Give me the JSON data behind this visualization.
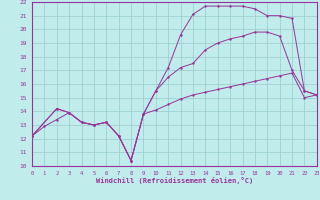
{
  "xlabel": "Windchill (Refroidissement éolien,°C)",
  "bg_color": "#c0ecec",
  "line_color": "#993399",
  "grid_color": "#99cccc",
  "xlim": [
    0,
    23
  ],
  "ylim": [
    10,
    22
  ],
  "xticks": [
    0,
    1,
    2,
    3,
    4,
    5,
    6,
    7,
    8,
    9,
    10,
    11,
    12,
    13,
    14,
    15,
    16,
    17,
    18,
    19,
    20,
    21,
    22,
    23
  ],
  "yticks": [
    10,
    11,
    12,
    13,
    14,
    15,
    16,
    17,
    18,
    19,
    20,
    21,
    22
  ],
  "line1_x": [
    0,
    1,
    2,
    3,
    4,
    5,
    6,
    7,
    8,
    9,
    10,
    11,
    12,
    13,
    14,
    15,
    16,
    17,
    18,
    19,
    20,
    21,
    22,
    23
  ],
  "line1_y": [
    12.2,
    12.9,
    13.4,
    13.9,
    13.2,
    13.0,
    13.2,
    12.2,
    10.4,
    13.8,
    14.1,
    14.5,
    14.9,
    15.2,
    15.4,
    15.6,
    15.8,
    16.0,
    16.2,
    16.4,
    16.6,
    16.8,
    15.0,
    15.2
  ],
  "line2_x": [
    0,
    2,
    3,
    4,
    5,
    6,
    7,
    8,
    9,
    10,
    11,
    12,
    13,
    14,
    15,
    16,
    17,
    18,
    19,
    20,
    21,
    22,
    23
  ],
  "line2_y": [
    12.2,
    14.2,
    13.9,
    13.2,
    13.0,
    13.2,
    12.2,
    10.4,
    13.8,
    15.5,
    17.2,
    19.6,
    21.1,
    21.7,
    21.7,
    21.7,
    21.7,
    21.5,
    21.0,
    21.0,
    20.8,
    15.5,
    15.2
  ],
  "line3_x": [
    0,
    2,
    3,
    4,
    5,
    6,
    7,
    8,
    9,
    10,
    11,
    12,
    13,
    14,
    15,
    16,
    17,
    18,
    19,
    20,
    21,
    22,
    23
  ],
  "line3_y": [
    12.2,
    14.2,
    13.9,
    13.2,
    13.0,
    13.2,
    12.2,
    10.4,
    13.8,
    15.5,
    16.5,
    17.2,
    17.5,
    18.5,
    19.0,
    19.3,
    19.5,
    19.8,
    19.8,
    19.5,
    17.0,
    15.5,
    15.2
  ]
}
